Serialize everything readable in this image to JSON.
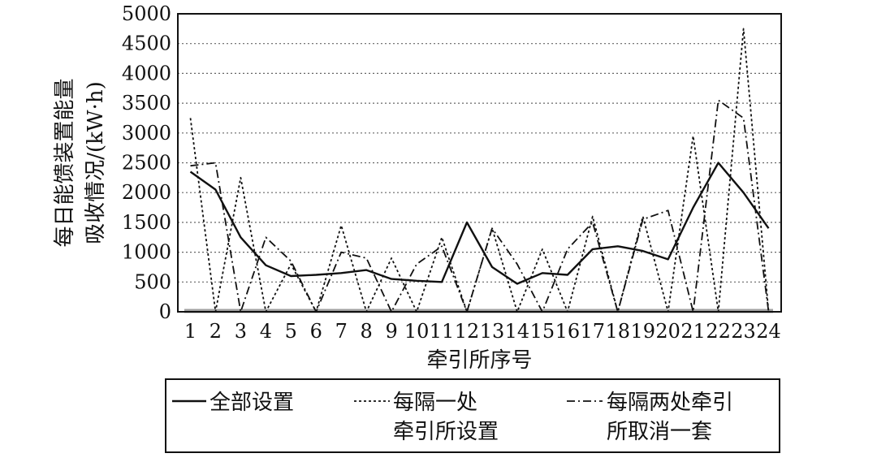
{
  "chart_data": {
    "type": "line",
    "title": "",
    "xlabel": "牵引所序号",
    "ylabel_lines": [
      "每日能馈装置能量",
      "吸收情况/(kW·h)"
    ],
    "categories": [
      "1",
      "2",
      "3",
      "4",
      "5",
      "6",
      "7",
      "8",
      "9",
      "10",
      "11",
      "12",
      "13",
      "14",
      "15",
      "16",
      "17",
      "18",
      "19",
      "20",
      "21",
      "22",
      "23",
      "24"
    ],
    "ylim": [
      0,
      5000
    ],
    "yticks": [
      "0",
      "500",
      "1000",
      "1500",
      "2000",
      "2500",
      "3000",
      "3500",
      "4000",
      "4500",
      "5000"
    ],
    "grid": "horizontal dotted",
    "legend_placement": "bottom",
    "series": [
      {
        "name_lines": [
          "全部设置"
        ],
        "style": "solid",
        "values": [
          2350,
          2050,
          1250,
          780,
          600,
          620,
          650,
          700,
          550,
          520,
          500,
          1500,
          750,
          470,
          650,
          620,
          1050,
          1100,
          1020,
          880,
          1750,
          2500,
          2000,
          1400
        ]
      },
      {
        "name_lines": [
          "每隔一处",
          "牵引所设置"
        ],
        "style": "dotted",
        "values": [
          3250,
          0,
          2250,
          0,
          800,
          0,
          1450,
          0,
          900,
          0,
          1250,
          0,
          1400,
          0,
          1050,
          0,
          1600,
          0,
          1600,
          0,
          2950,
          0,
          4750,
          0
        ]
      },
      {
        "name_lines": [
          "每隔两处牵引",
          "所取消一套"
        ],
        "style": "dashdot",
        "values": [
          2450,
          2500,
          0,
          1250,
          850,
          0,
          1000,
          900,
          0,
          800,
          1100,
          0,
          1400,
          800,
          0,
          1050,
          1500,
          0,
          1550,
          1700,
          0,
          3550,
          3250,
          0
        ]
      }
    ],
    "colors": {
      "line": "#111111",
      "grid": "#666666",
      "baseline": "#a0a0a0"
    }
  }
}
